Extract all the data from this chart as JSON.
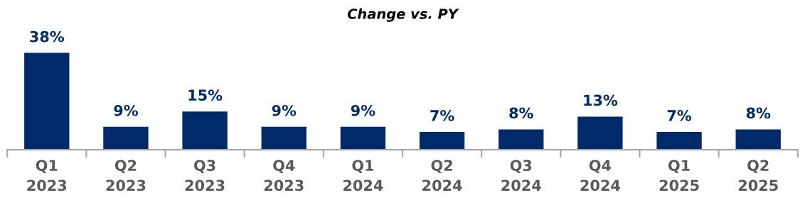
{
  "chart_data": {
    "type": "bar",
    "title": "Change vs. PY",
    "categories": [
      "Q1\n2023",
      "Q2\n2023",
      "Q3\n2023",
      "Q4\n2023",
      "Q1\n2024",
      "Q2\n2024",
      "Q3\n2024",
      "Q4\n2024",
      "Q1\n2025",
      "Q2\n2025"
    ],
    "values": [
      38,
      9,
      15,
      9,
      9,
      7,
      8,
      13,
      7,
      8
    ],
    "value_labels": [
      "38%",
      "9%",
      "15%",
      "9%",
      "9%",
      "7%",
      "8%",
      "13%",
      "7%",
      "8%"
    ],
    "color": "#002b6b",
    "tick_labels": "x",
    "grid": false,
    "legend": false
  }
}
